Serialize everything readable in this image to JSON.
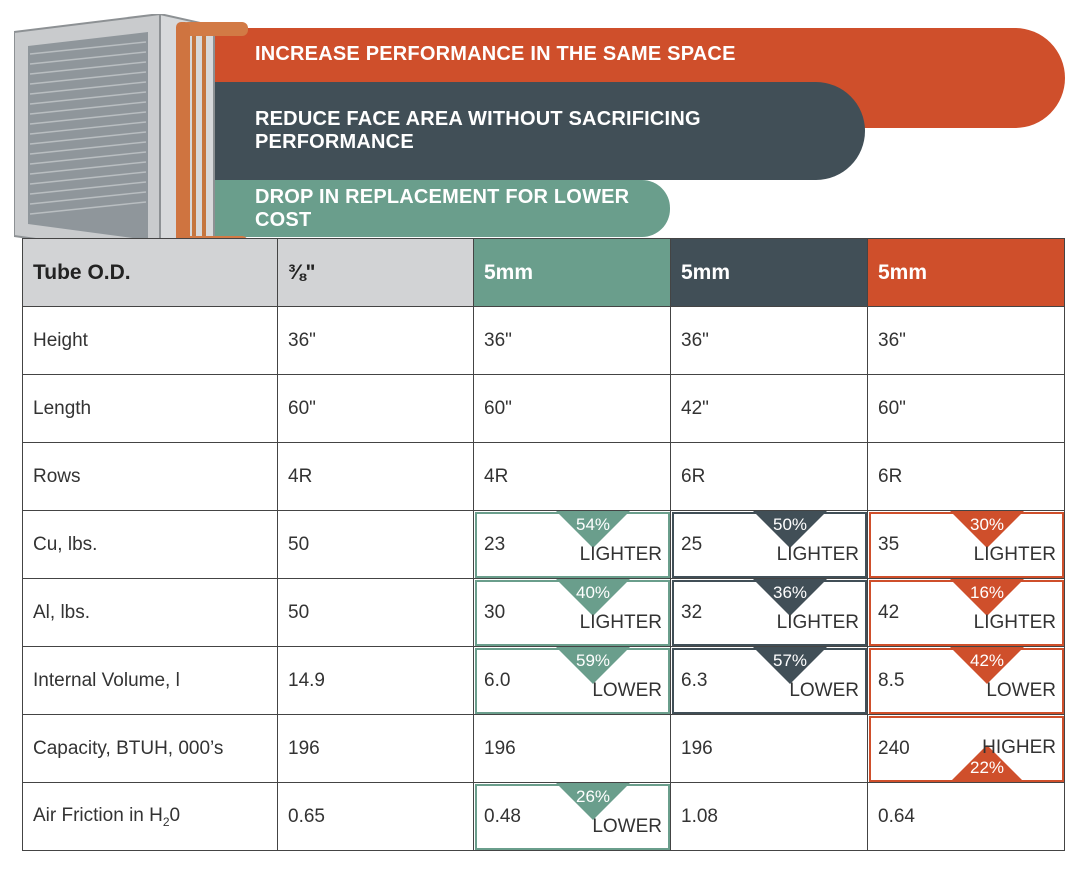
{
  "banners": [
    "INCREASE PERFORMANCE IN THE SAME SPACE",
    "REDUCE FACE AREA WITHOUT SACRIFICING PERFORMANCE",
    "DROP IN REPLACEMENT FOR LOWER COST"
  ],
  "colors": {
    "orange": "#cf4f2b",
    "slate": "#414f57",
    "green": "#6a9e8c",
    "header_gray": "#d2d3d5"
  },
  "table": {
    "headers": [
      "Tube O.D.",
      "⅜\"",
      "5mm",
      "5mm",
      "5mm"
    ],
    "rows": [
      {
        "label": "Height",
        "cells": [
          "36\"",
          "36\"",
          "36\"",
          "36\""
        ]
      },
      {
        "label": "Length",
        "cells": [
          "60\"",
          "60\"",
          "42\"",
          "60\""
        ]
      },
      {
        "label": "Rows",
        "cells": [
          "4R",
          "4R",
          "6R",
          "6R"
        ]
      },
      {
        "label": "Cu, lbs.",
        "cells": [
          "50",
          "23",
          "25",
          "35"
        ],
        "badges": [
          null,
          {
            "pct": "54%",
            "word": "LIGHTER"
          },
          {
            "pct": "50%",
            "word": "LIGHTER"
          },
          {
            "pct": "30%",
            "word": "LIGHTER"
          }
        ]
      },
      {
        "label": "Al, lbs.",
        "cells": [
          "50",
          "30",
          "32",
          "42"
        ],
        "badges": [
          null,
          {
            "pct": "40%",
            "word": "LIGHTER"
          },
          {
            "pct": "36%",
            "word": "LIGHTER"
          },
          {
            "pct": "16%",
            "word": "LIGHTER"
          }
        ]
      },
      {
        "label": "Internal Volume, l",
        "cells": [
          "14.9",
          "6.0",
          "6.3",
          "8.5"
        ],
        "badges": [
          null,
          {
            "pct": "59%",
            "word": "LOWER"
          },
          {
            "pct": "57%",
            "word": "LOWER"
          },
          {
            "pct": "42%",
            "word": "LOWER"
          }
        ]
      },
      {
        "label": "Capacity, BTUH, 000’s",
        "cells": [
          "196",
          "196",
          "196",
          "240"
        ],
        "badges": [
          null,
          null,
          null,
          {
            "pct": "22%",
            "word": "HIGHER"
          }
        ]
      },
      {
        "label_main": "Air Friction in H",
        "label_sub": "2",
        "label_tail": "0",
        "cells": [
          "0.65",
          "0.48",
          "1.08",
          "0.64"
        ],
        "badges": [
          null,
          {
            "pct": "26%",
            "word": "LOWER"
          },
          null,
          null
        ]
      }
    ]
  }
}
